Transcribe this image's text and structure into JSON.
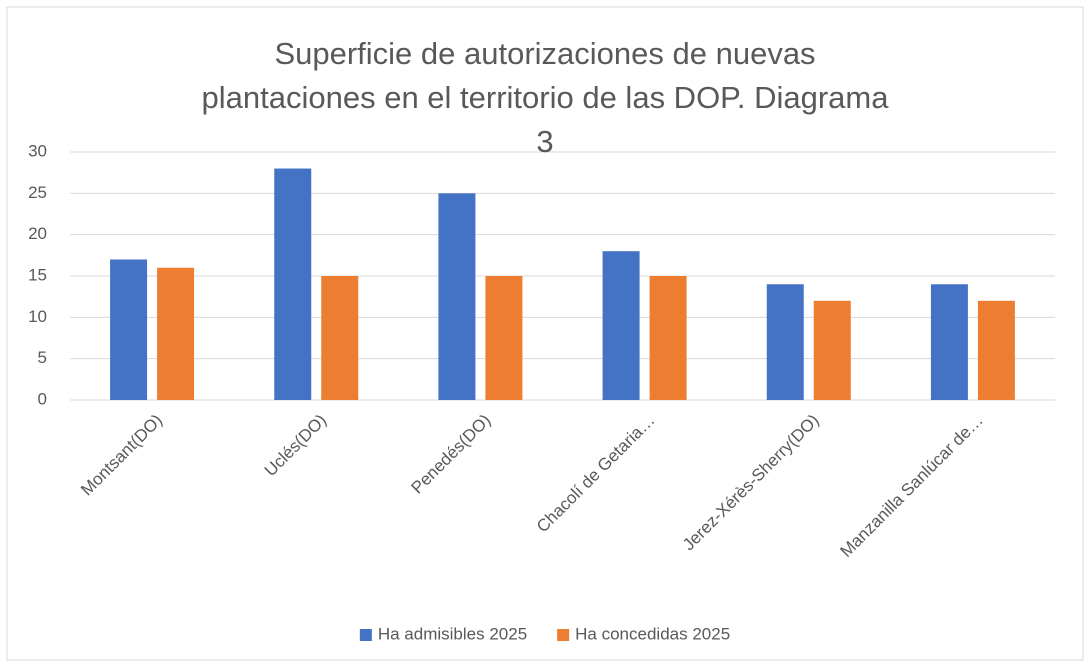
{
  "chart_data": {
    "type": "bar",
    "title": "Superficie de autorizaciones de nuevas plantaciones en el territorio de las DOP. Diagrama 3",
    "categories": [
      "Montsant(DO)",
      "Uclés(DO)",
      "Penedés(DO)",
      "Chacolí de Getaria…",
      "Jerez-Xérès-Sherry(DO)",
      "Manzanilla Sanlúcar de…"
    ],
    "series": [
      {
        "name": "Ha admisibles 2025",
        "color": "#4472c4",
        "values": [
          17,
          28,
          25,
          18,
          14,
          14
        ]
      },
      {
        "name": "Ha concedidas 2025",
        "color": "#ed7d31",
        "values": [
          16,
          15,
          15,
          15,
          12,
          12
        ]
      }
    ],
    "ylim": [
      0,
      30
    ],
    "yticks": [
      0,
      5,
      10,
      15,
      20,
      25,
      30
    ],
    "grid": true,
    "legend": "bottom"
  }
}
